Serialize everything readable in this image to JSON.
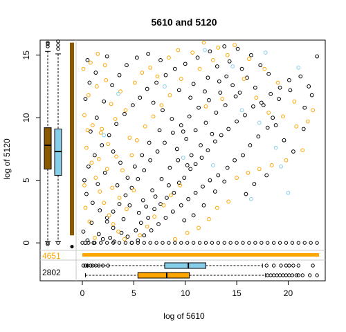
{
  "chart_data": {
    "type": "scatter",
    "title": "5610  and 5120",
    "xlabel": "log of 5610",
    "ylabel": "log of 5120",
    "xlim": [
      -4.1,
      23.6
    ],
    "ylim": [
      -0.6,
      16.2
    ],
    "x_ticks": [
      0,
      5,
      10,
      15,
      20
    ],
    "y_ticks": [
      0,
      5,
      10,
      15
    ],
    "grid": false,
    "colors": {
      "black_series": "#000000",
      "orange_series": "#FFA500",
      "lightblue_series": "#87CEEB",
      "brown_box": "#8B5A00",
      "blue_box": "#87CEEB",
      "orange_box": "#FFA500",
      "divider": "#c8c8c8"
    },
    "zero_counts": [
      {
        "label": "4651",
        "color": "#FFA500"
      },
      {
        "label": "2802",
        "color": "#000000"
      }
    ],
    "series": [
      {
        "color": "black",
        "values_note": "",
        "points": [
          [
            0.3,
            0.0
          ],
          [
            0.5,
            0.2
          ],
          [
            1.1,
            0.0
          ],
          [
            2.0,
            0.3
          ],
          [
            3.1,
            0.1
          ],
          [
            4.4,
            0.5
          ],
          [
            5.2,
            1.0
          ],
          [
            5.7,
            1.6
          ],
          [
            6.4,
            2.0
          ],
          [
            7.0,
            2.7
          ],
          [
            7.6,
            3.1
          ],
          [
            8.2,
            3.6
          ],
          [
            8.9,
            4.0
          ],
          [
            9.4,
            4.8
          ],
          [
            9.9,
            5.2
          ],
          [
            10.5,
            5.9
          ],
          [
            11.0,
            6.3
          ],
          [
            11.6,
            6.8
          ],
          [
            12.2,
            7.4
          ],
          [
            12.9,
            8.1
          ],
          [
            13.5,
            8.6
          ],
          [
            14.2,
            9.1
          ],
          [
            15.0,
            9.7
          ],
          [
            15.8,
            10.2
          ],
          [
            16.6,
            10.9
          ],
          [
            17.4,
            11.2
          ],
          [
            18.3,
            11.9
          ],
          [
            19.2,
            12.4
          ],
          [
            20.1,
            13.0
          ],
          [
            21.2,
            13.3
          ],
          [
            22.8,
            14.9
          ],
          [
            22.0,
            12.5
          ],
          [
            21.6,
            10.8
          ],
          [
            20.2,
            12.2
          ],
          [
            19.1,
            11.5
          ],
          [
            18.5,
            10.0
          ],
          [
            18.0,
            9.2
          ],
          [
            17.1,
            8.5
          ],
          [
            16.3,
            7.8
          ],
          [
            15.6,
            7.0
          ],
          [
            14.8,
            6.6
          ],
          [
            14.1,
            6.0
          ],
          [
            13.2,
            5.4
          ],
          [
            12.4,
            5.0
          ],
          [
            11.7,
            4.5
          ],
          [
            11.0,
            4.0
          ],
          [
            10.3,
            3.5
          ],
          [
            9.6,
            3.0
          ],
          [
            8.8,
            2.5
          ],
          [
            8.1,
            2.0
          ],
          [
            7.4,
            1.5
          ],
          [
            6.7,
            1.0
          ],
          [
            6.0,
            0.6
          ],
          [
            5.4,
            0.2
          ],
          [
            4.8,
            0.0
          ],
          [
            3.8,
            0.8
          ],
          [
            3.0,
            1.2
          ],
          [
            2.4,
            2.0
          ],
          [
            1.7,
            2.6
          ],
          [
            1.0,
            3.2
          ],
          [
            0.4,
            3.9
          ],
          [
            0.2,
            5.0
          ],
          [
            0.6,
            6.1
          ],
          [
            1.2,
            7.0
          ],
          [
            1.9,
            7.8
          ],
          [
            2.6,
            8.6
          ],
          [
            3.3,
            9.5
          ],
          [
            4.1,
            10.3
          ],
          [
            4.9,
            11.0
          ],
          [
            5.6,
            11.6
          ],
          [
            6.3,
            12.3
          ],
          [
            7.2,
            12.8
          ],
          [
            8.1,
            13.4
          ],
          [
            9.0,
            13.9
          ],
          [
            10.0,
            14.3
          ],
          [
            11.2,
            14.8
          ],
          [
            12.4,
            15.3
          ],
          [
            13.8,
            15.7
          ],
          [
            15.1,
            15.5
          ],
          [
            16.4,
            15.0
          ],
          [
            17.3,
            14.2
          ],
          [
            18.1,
            13.5
          ],
          [
            16.0,
            13.2
          ],
          [
            14.6,
            12.6
          ],
          [
            13.4,
            12.0
          ],
          [
            12.3,
            11.4
          ],
          [
            11.3,
            10.8
          ],
          [
            10.4,
            10.1
          ],
          [
            9.6,
            9.4
          ],
          [
            8.8,
            8.8
          ],
          [
            8.0,
            8.0
          ],
          [
            7.3,
            7.3
          ],
          [
            6.6,
            6.6
          ],
          [
            6.0,
            5.8
          ],
          [
            5.4,
            5.1
          ],
          [
            4.8,
            4.4
          ],
          [
            4.2,
            3.8
          ],
          [
            3.6,
            3.1
          ],
          [
            3.0,
            2.5
          ],
          [
            2.4,
            1.7
          ],
          [
            9.2,
            7.5
          ],
          [
            10.1,
            8.3
          ],
          [
            11.0,
            9.0
          ],
          [
            12.0,
            9.6
          ],
          [
            13.0,
            10.4
          ],
          [
            13.9,
            11.0
          ],
          [
            14.9,
            11.7
          ],
          [
            10.6,
            7.0
          ],
          [
            11.5,
            7.8
          ],
          [
            12.6,
            8.7
          ],
          [
            8.5,
            6.0
          ],
          [
            9.3,
            6.6
          ],
          [
            10.2,
            6.2
          ],
          [
            9.8,
            8.9
          ],
          [
            8.7,
            9.9
          ],
          [
            7.8,
            10.6
          ],
          [
            6.9,
            11.2
          ],
          [
            7.5,
            9.0
          ],
          [
            6.5,
            8.0
          ],
          [
            5.8,
            7.0
          ],
          [
            5.1,
            6.1
          ],
          [
            4.4,
            5.2
          ],
          [
            3.7,
            6.4
          ],
          [
            3.0,
            7.3
          ],
          [
            2.2,
            5.6
          ],
          [
            1.5,
            4.7
          ],
          [
            0.8,
            8.9
          ],
          [
            1.4,
            10.0
          ],
          [
            2.1,
            11.3
          ],
          [
            2.9,
            12.6
          ],
          [
            3.6,
            13.4
          ],
          [
            4.3,
            14.2
          ],
          [
            5.3,
            14.8
          ],
          [
            6.4,
            15.1
          ],
          [
            7.6,
            14.6
          ],
          [
            9.4,
            12.2
          ],
          [
            10.8,
            12.7
          ],
          [
            12.2,
            13.2
          ],
          [
            13.1,
            14.1
          ],
          [
            14.3,
            14.5
          ],
          [
            15.5,
            13.9
          ],
          [
            16.8,
            12.4
          ],
          [
            17.6,
            11.0
          ],
          [
            18.8,
            9.4
          ],
          [
            19.6,
            8.2
          ],
          [
            20.5,
            7.3
          ],
          [
            21.5,
            9.1
          ],
          [
            22.3,
            11.8
          ],
          [
            17.9,
            5.4
          ],
          [
            16.7,
            4.7
          ],
          [
            15.9,
            3.9
          ],
          [
            11.8,
            3.0
          ],
          [
            12.9,
            4.1
          ],
          [
            13.8,
            4.9
          ],
          [
            10.8,
            2.2
          ],
          [
            9.9,
            1.8
          ],
          [
            0.1,
            0.9
          ],
          [
            0.9,
            1.6
          ],
          [
            1.6,
            0.7
          ],
          [
            2.7,
            0.4
          ],
          [
            4.0,
            1.9
          ],
          [
            5.9,
            3.4
          ],
          [
            6.8,
            4.2
          ],
          [
            7.7,
            5.1
          ],
          [
            8.4,
            4.6
          ],
          [
            7.1,
            3.7
          ],
          [
            6.2,
            2.9
          ],
          [
            5.5,
            2.4
          ],
          [
            4.6,
            3.0
          ],
          [
            3.4,
            4.6
          ],
          [
            0.3,
            11.5
          ],
          [
            0.7,
            12.8
          ],
          [
            1.3,
            13.6
          ],
          [
            0.5,
            14.6
          ],
          [
            2.4,
            14.9
          ],
          [
            10.5,
            11.6
          ],
          [
            11.9,
            12.1
          ],
          [
            13.3,
            12.9
          ],
          [
            14.0,
            13.3
          ],
          [
            15.3,
            12.0
          ]
        ]
      },
      {
        "color": "orange",
        "values_note": "",
        "points": [
          [
            0.2,
            10.2
          ],
          [
            0.6,
            11.8
          ],
          [
            1.0,
            9.4
          ],
          [
            1.4,
            12.5
          ],
          [
            1.8,
            8.8
          ],
          [
            2.3,
            13.0
          ],
          [
            2.8,
            11.1
          ],
          [
            3.2,
            9.9
          ],
          [
            3.7,
            12.1
          ],
          [
            4.2,
            10.6
          ],
          [
            4.6,
            8.4
          ],
          [
            0.4,
            7.6
          ],
          [
            0.9,
            6.4
          ],
          [
            1.3,
            5.2
          ],
          [
            1.7,
            4.1
          ],
          [
            2.1,
            3.2
          ],
          [
            2.6,
            2.2
          ],
          [
            3.0,
            1.5
          ],
          [
            3.5,
            0.9
          ],
          [
            4.1,
            0.3
          ],
          [
            0.1,
            13.9
          ],
          [
            0.8,
            14.4
          ],
          [
            1.5,
            15.1
          ],
          [
            2.2,
            14.2
          ],
          [
            5.1,
            12.8
          ],
          [
            5.8,
            13.6
          ],
          [
            6.6,
            14.0
          ],
          [
            7.3,
            13.3
          ],
          [
            8.4,
            14.8
          ],
          [
            9.3,
            15.4
          ],
          [
            10.7,
            15.2
          ],
          [
            11.8,
            16.0
          ],
          [
            13.2,
            15.6
          ],
          [
            14.8,
            15.8
          ],
          [
            16.2,
            14.7
          ],
          [
            17.7,
            13.9
          ],
          [
            19.0,
            12.8
          ],
          [
            20.6,
            11.3
          ],
          [
            21.9,
            9.7
          ],
          [
            22.4,
            10.6
          ],
          [
            18.4,
            6.2
          ],
          [
            17.2,
            5.9
          ],
          [
            16.1,
            5.6
          ],
          [
            15.0,
            5.2
          ],
          [
            14.2,
            3.3
          ],
          [
            13.1,
            2.8
          ],
          [
            12.3,
            1.9
          ],
          [
            11.3,
            1.2
          ],
          [
            10.2,
            0.8
          ],
          [
            9.0,
            0.3
          ],
          [
            5.6,
            0.6
          ],
          [
            6.3,
            1.3
          ],
          [
            7.0,
            2.1
          ],
          [
            7.9,
            3.0
          ],
          [
            8.6,
            3.8
          ],
          [
            9.5,
            4.6
          ],
          [
            3.9,
            5.8
          ],
          [
            3.3,
            6.9
          ],
          [
            2.5,
            7.9
          ],
          [
            1.9,
            9.1
          ],
          [
            4.8,
            7.0
          ],
          [
            5.3,
            8.2
          ],
          [
            6.1,
            9.3
          ],
          [
            6.9,
            10.1
          ],
          [
            7.7,
            11.0
          ],
          [
            8.5,
            11.8
          ],
          [
            9.6,
            13.1
          ],
          [
            11.4,
            13.9
          ],
          [
            12.7,
            14.6
          ],
          [
            14.1,
            15.0
          ],
          [
            15.7,
            13.1
          ],
          [
            16.9,
            11.6
          ],
          [
            18.1,
            10.4
          ],
          [
            19.5,
            10.1
          ],
          [
            20.8,
            9.3
          ],
          [
            21.4,
            7.4
          ],
          [
            19.8,
            6.6
          ],
          [
            0.3,
            2.8
          ],
          [
            0.7,
            1.7
          ],
          [
            1.2,
            0.4
          ],
          [
            2.9,
            4.4
          ],
          [
            3.6,
            3.6
          ],
          [
            4.3,
            2.7
          ],
          [
            5.0,
            4.2
          ],
          [
            1.6,
            6.7
          ],
          [
            2.4,
            5.9
          ],
          [
            0.5,
            9.0
          ],
          [
            0.2,
            4.6
          ],
          [
            12.0,
            10.9
          ],
          [
            13.6,
            11.5
          ]
        ]
      },
      {
        "color": "lightblue",
        "values_note": "",
        "points": [
          [
            2.1,
            8.6
          ],
          [
            9.8,
            6.8
          ],
          [
            12.7,
            6.2
          ],
          [
            17.2,
            9.6
          ],
          [
            18.8,
            7.6
          ],
          [
            19.3,
            6.1
          ],
          [
            20.0,
            4.0
          ],
          [
            16.4,
            3.5
          ],
          [
            14.6,
            14.1
          ],
          [
            11.9,
            15.4
          ],
          [
            3.5,
            11.9
          ],
          [
            8.0,
            12.5
          ],
          [
            15.5,
            10.6
          ],
          [
            21.0,
            14.0
          ],
          [
            17.8,
            15.2
          ]
        ]
      }
    ],
    "left_boxplots": [
      {
        "color": "brown",
        "q1": 5.9,
        "median": 7.8,
        "q3": 9.2,
        "whisker_low": 0.1,
        "whisker_high": 15.3,
        "outliers_high": [
          15.7,
          16.0,
          15.9
        ],
        "outliers_low": [
          0.0,
          -0.1
        ]
      },
      {
        "color": "lightblue",
        "q1": 5.4,
        "median": 7.3,
        "q3": 9.1,
        "whisker_low": 0.1,
        "whisker_high": 15.1,
        "outliers_high": [
          15.5,
          15.8,
          16.1
        ],
        "outliers_low": [
          0.0
        ]
      },
      {
        "color": "brown_strip",
        "from": 0.6,
        "to": 16.0,
        "single_point": -0.3
      }
    ],
    "bottom_boxplots": [
      {
        "color": "lightblue",
        "q1": 8.0,
        "median": 10.3,
        "q3": 12.0,
        "whisker_low": 0.5,
        "whisker_high": 17.5,
        "outliers_low": [
          0.1,
          0.3,
          0.5,
          0.8,
          1.0,
          1.3,
          1.6,
          2.0,
          2.5
        ],
        "outliers_high": [
          17.9,
          18.6,
          19.3,
          19.8,
          20.1,
          20.5,
          21.0,
          22.4
        ]
      },
      {
        "color": "orange",
        "q1": 5.4,
        "median": 8.2,
        "q3": 10.4,
        "whisker_low": 0.3,
        "whisker_high": 17.8,
        "outliers_high": [
          18.0,
          18.3,
          18.6,
          18.9,
          19.2,
          19.5,
          19.8,
          20.1,
          20.4,
          20.8,
          21.0,
          21.4,
          22.1,
          22.8
        ]
      }
    ],
    "zero_strip_y": {
      "from": 0.0,
      "to": 23.0
    }
  }
}
